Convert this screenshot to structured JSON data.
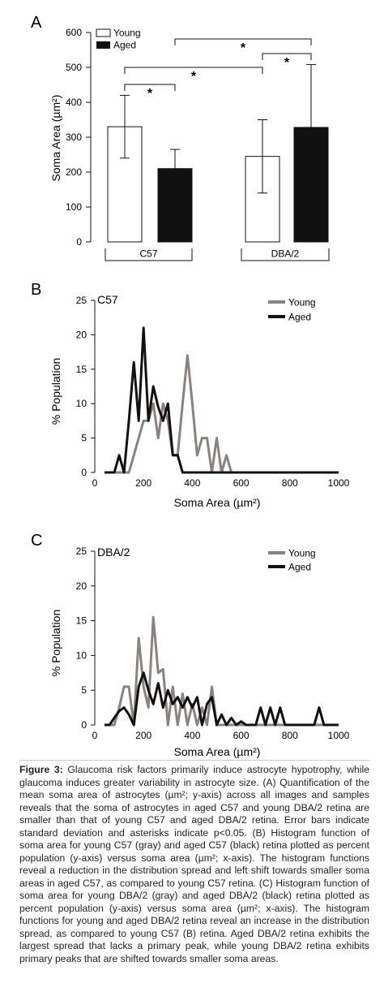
{
  "figure": {
    "panels": [
      "A",
      "B",
      "C"
    ],
    "caption_label": "Figure 3:",
    "caption_text": "Glaucoma risk factors primarily induce astrocyte hypotrophy, while glaucoma induces greater variability in astrocyte size. (A) Quantification of the mean soma area of astrocytes (µm²; y-axis) across all images and samples reveals that the soma of astrocytes in aged C57 and young DBA/2 retina are smaller than that of young C57 and aged DBA/2 retina. Error bars indicate standard deviation and asterisks indicate p<0.05. (B) Histogram function of soma area for young C57 (gray) and aged C57 (black) retina plotted as percent population (y-axis) versus soma area (µm²; x-axis). The histogram functions reveal a reduction in the distribution spread and left shift towards smaller soma areas in aged C57, as compared to young C57 retina. (C) Histogram function of soma area for young DBA/2 (gray) and aged DBA/2 (black) retina plotted as percent population (y-axis) versus soma area (µm²; x-axis). The histogram functions for young and aged DBA/2 retina reveal an increase in the distribution spread, as compared to young C57 (B) retina. Aged DBA/2 retina exhibits the largest spread that lacks a primary peak, while young DBA/2 retina exhibits primary peaks that are shifted towards smaller soma areas."
  },
  "colors": {
    "young_bar": "#ffffff",
    "aged_bar": "#111111",
    "young_line": "#8a8280",
    "aged_line": "#111111"
  },
  "chart_data": [
    {
      "panel": "A",
      "type": "bar",
      "ylabel": "Soma Area (µm²)",
      "ylim": [
        0,
        600
      ],
      "yticks": [
        0,
        100,
        200,
        300,
        400,
        500,
        600
      ],
      "groups": [
        "C57",
        "DBA/2"
      ],
      "legend": [
        "Young",
        "Aged"
      ],
      "series": [
        {
          "name": "Young",
          "values": [
            330,
            245
          ],
          "sd": [
            90,
            105
          ]
        },
        {
          "name": "Aged",
          "values": [
            210,
            328
          ],
          "sd": [
            55,
            180
          ]
        }
      ],
      "significance": [
        {
          "label": "*",
          "between": [
            "C57 Young",
            "C57 Aged"
          ]
        },
        {
          "label": "*",
          "between": [
            "C57 Young",
            "DBA/2 Young"
          ]
        },
        {
          "label": "*",
          "between": [
            "C57 Aged",
            "DBA/2 Aged"
          ]
        },
        {
          "label": "*",
          "between": [
            "DBA/2 Young",
            "DBA/2 Aged"
          ]
        }
      ]
    },
    {
      "panel": "B",
      "type": "line",
      "title": "C57",
      "xlabel": "Soma Area (µm²)",
      "ylabel": "% Population",
      "xlim": [
        0,
        1000
      ],
      "ylim": [
        0,
        25
      ],
      "xticks": [
        0,
        200,
        400,
        600,
        800,
        1000
      ],
      "yticks": [
        0,
        5,
        10,
        15,
        20,
        25
      ],
      "series": [
        {
          "name": "Young",
          "x": [
            50,
            100,
            140,
            160,
            180,
            200,
            220,
            240,
            260,
            280,
            300,
            320,
            340,
            360,
            380,
            400,
            420,
            440,
            460,
            480,
            500,
            520,
            540,
            560,
            580,
            1000
          ],
          "y": [
            0,
            0,
            0,
            2.5,
            5,
            7.5,
            7.5,
            10,
            5,
            10,
            7.5,
            2.5,
            2.5,
            10,
            17,
            10,
            2.5,
            5,
            5,
            0,
            5,
            0,
            2.5,
            0,
            0,
            0
          ]
        },
        {
          "name": "Aged",
          "x": [
            40,
            80,
            100,
            120,
            140,
            160,
            180,
            200,
            220,
            240,
            260,
            280,
            300,
            320,
            340,
            360,
            380,
            400,
            420,
            1000
          ],
          "y": [
            0,
            0,
            2.5,
            0,
            7.5,
            16,
            7.5,
            21,
            7.5,
            12.5,
            9.5,
            7.5,
            10,
            2.5,
            2.5,
            0,
            0,
            0,
            0,
            0
          ]
        }
      ]
    },
    {
      "panel": "C",
      "type": "line",
      "title": "DBA/2",
      "xlabel": "Soma Area (µm²)",
      "ylabel": "% Population",
      "xlim": [
        0,
        1000
      ],
      "ylim": [
        0,
        25
      ],
      "xticks": [
        0,
        200,
        400,
        600,
        800,
        1000
      ],
      "yticks": [
        0,
        5,
        10,
        15,
        20,
        25
      ],
      "series": [
        {
          "name": "Young",
          "x": [
            40,
            80,
            100,
            120,
            140,
            160,
            180,
            200,
            220,
            240,
            260,
            280,
            300,
            320,
            340,
            360,
            380,
            400,
            420,
            440,
            460,
            480,
            500,
            1000
          ],
          "y": [
            0,
            0,
            2.5,
            5.5,
            5.5,
            0,
            12.5,
            5.5,
            2.5,
            15.5,
            7.5,
            8,
            0,
            5.5,
            0,
            4.5,
            0,
            3,
            0,
            2.5,
            0,
            5.5,
            0,
            0
          ]
        },
        {
          "name": "Aged",
          "x": [
            40,
            60,
            80,
            100,
            120,
            140,
            160,
            180,
            200,
            220,
            240,
            260,
            280,
            300,
            320,
            340,
            360,
            380,
            400,
            420,
            440,
            460,
            480,
            500,
            520,
            540,
            560,
            580,
            600,
            620,
            640,
            660,
            680,
            700,
            720,
            740,
            760,
            780,
            800,
            820,
            840,
            860,
            880,
            900,
            920,
            940,
            960,
            1000
          ],
          "y": [
            0,
            0,
            1,
            2,
            2.5,
            1.5,
            0,
            5.5,
            7.5,
            5,
            3,
            6,
            2.5,
            5,
            3,
            4,
            2.5,
            4,
            2.5,
            4,
            0,
            3,
            4,
            0,
            1.5,
            0,
            1,
            0,
            0.5,
            0,
            0,
            0,
            2.5,
            0,
            2.5,
            0,
            2.5,
            0,
            0,
            0,
            0,
            0,
            0,
            0,
            2.5,
            0,
            0,
            0
          ]
        }
      ]
    }
  ]
}
